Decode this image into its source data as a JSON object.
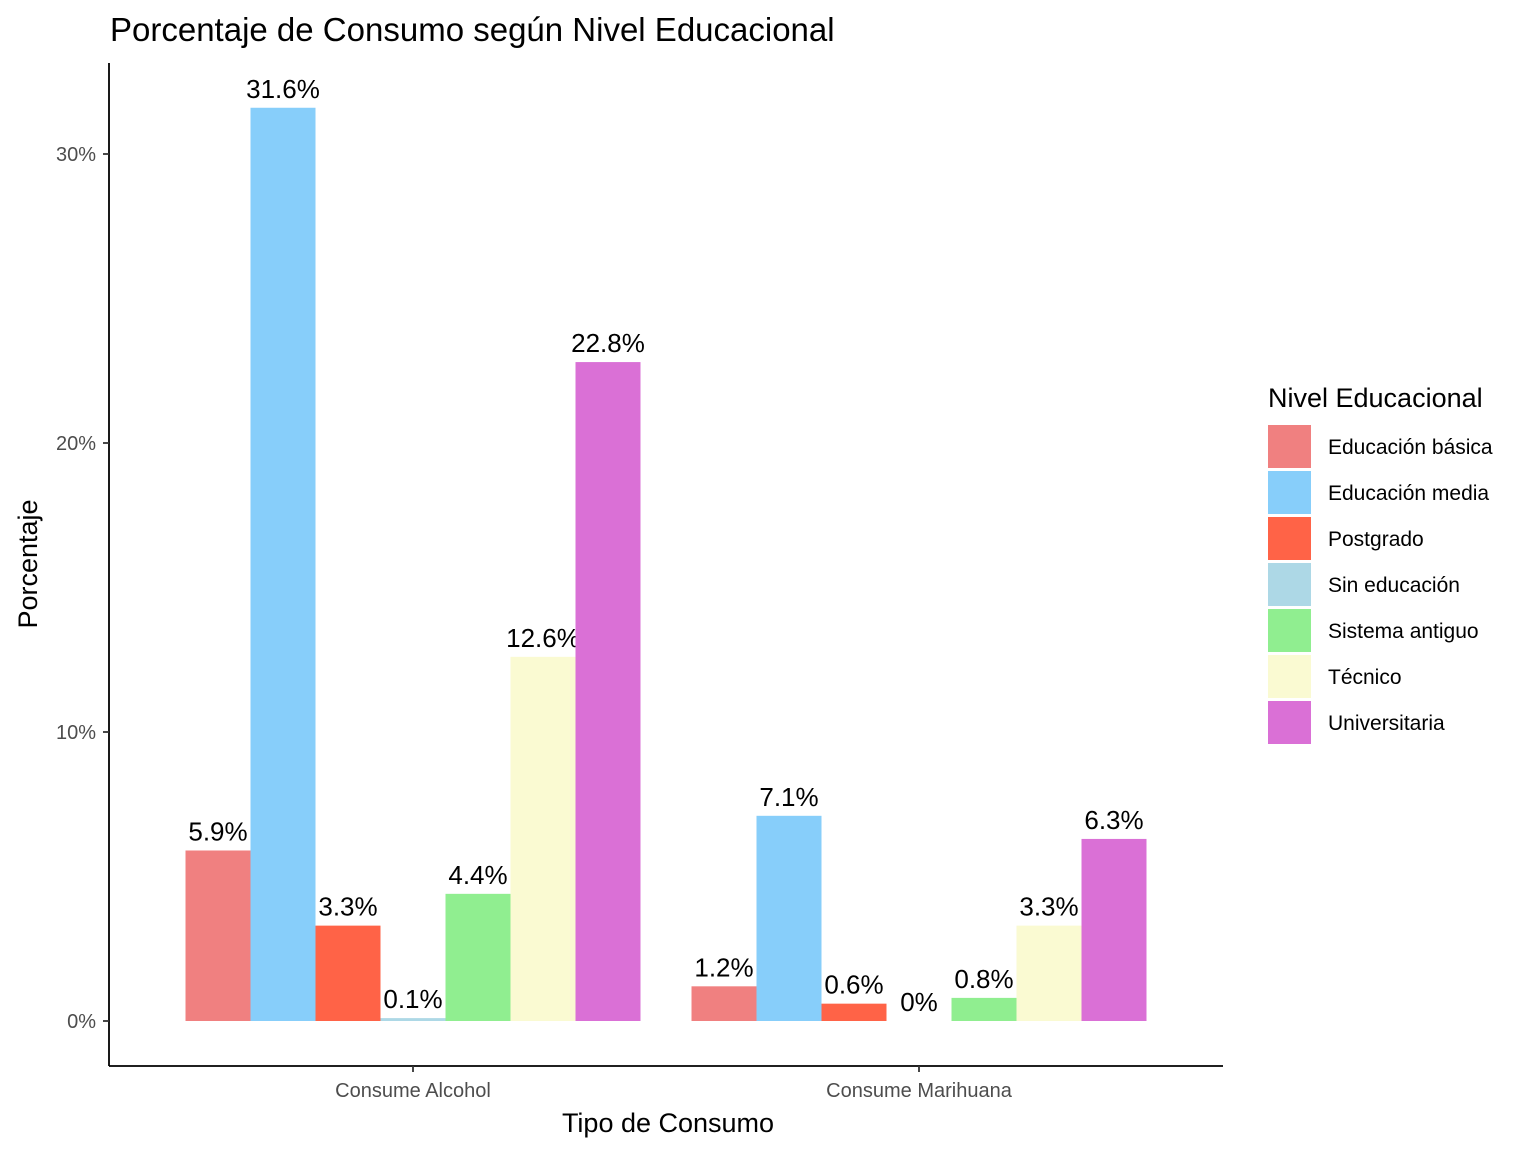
{
  "chart_data": {
    "type": "bar",
    "title": "Porcentaje de Consumo según Nivel Educacional",
    "xlabel": "Tipo de Consumo",
    "ylabel": "Porcentaje",
    "categories": [
      "Consume Alcohol",
      "Consume Marihuana"
    ],
    "ylim": [
      0,
      32
    ],
    "yticks": [
      0,
      10,
      20,
      30
    ],
    "ytick_labels": [
      "0%",
      "10%",
      "20%",
      "30%"
    ],
    "grid": false,
    "legend": {
      "title": "Nivel Educacional",
      "position": "right"
    },
    "series": [
      {
        "name": "Educación básica",
        "color": "#F08080",
        "values": [
          5.9,
          1.2
        ],
        "labels": [
          "5.9%",
          "1.2%"
        ]
      },
      {
        "name": "Educación media",
        "color": "#87CEFA",
        "values": [
          31.6,
          7.1
        ],
        "labels": [
          "31.6%",
          "7.1%"
        ]
      },
      {
        "name": "Postgrado",
        "color": "#FF6347",
        "values": [
          3.3,
          0.6
        ],
        "labels": [
          "3.3%",
          "0.6%"
        ]
      },
      {
        "name": "Sin educación",
        "color": "#ADD8E6",
        "values": [
          0.1,
          0
        ],
        "labels": [
          "0.1%",
          "0%"
        ]
      },
      {
        "name": "Sistema antiguo",
        "color": "#90EE90",
        "values": [
          4.4,
          0.8
        ],
        "labels": [
          "4.4%",
          "0.8%"
        ]
      },
      {
        "name": "Técnico",
        "color": "#FAFAD2",
        "values": [
          12.6,
          3.3
        ],
        "labels": [
          "12.6%",
          "3.3%"
        ]
      },
      {
        "name": "Universitaria",
        "color": "#DA70D6",
        "values": [
          22.8,
          6.3
        ],
        "labels": [
          "22.8%",
          "6.3%"
        ]
      }
    ]
  }
}
